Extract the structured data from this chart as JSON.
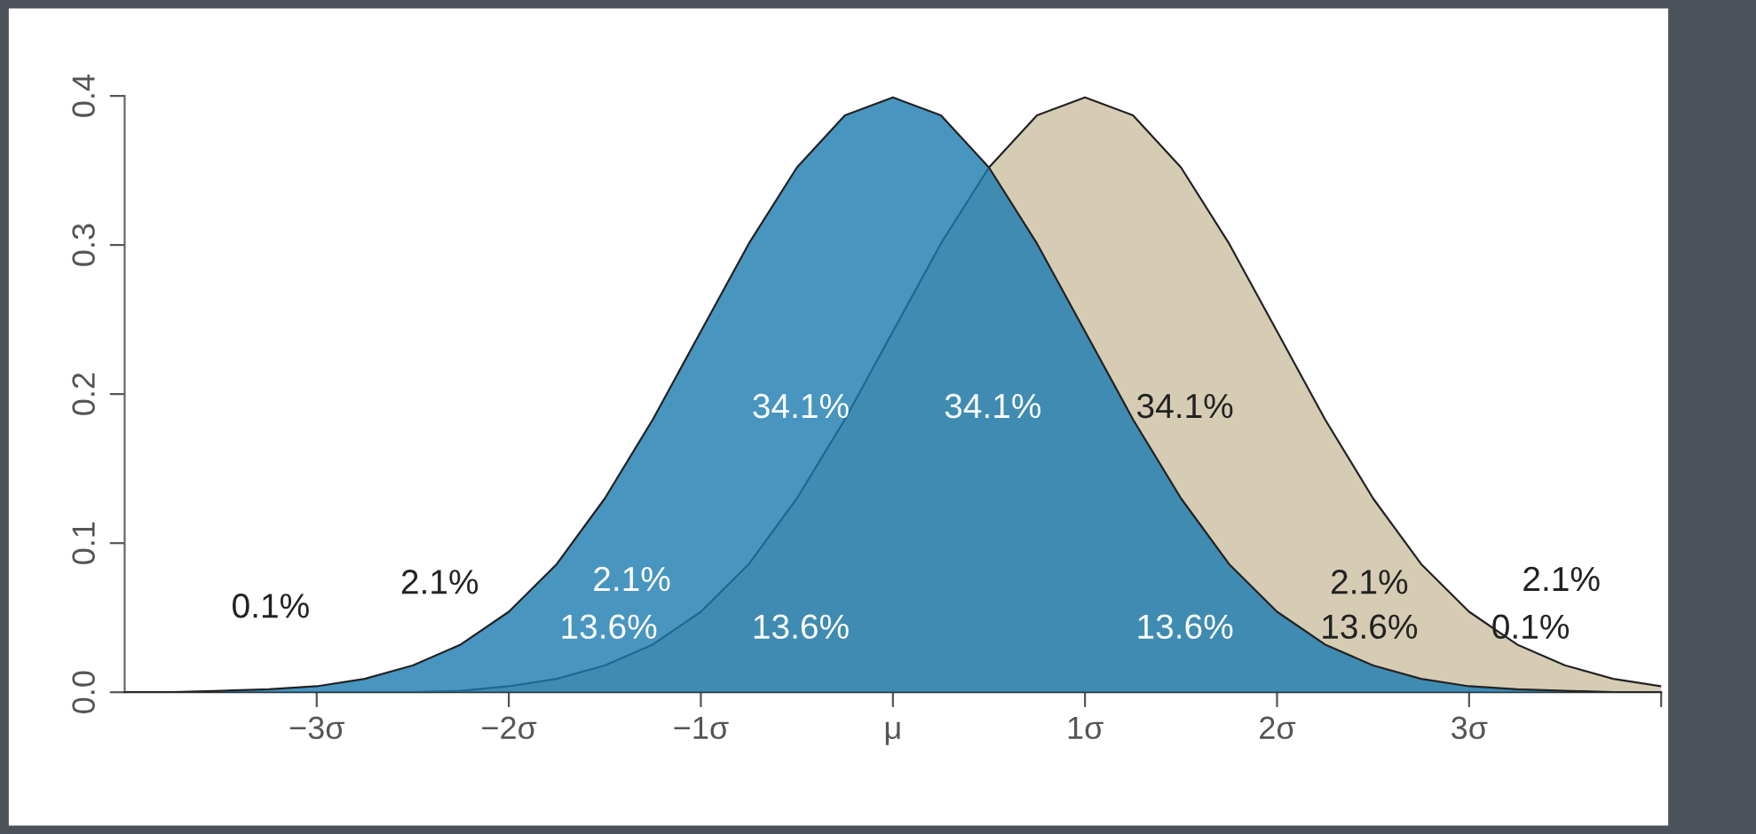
{
  "chart_data": {
    "type": "area",
    "series": [
      {
        "color": "#1a7ab0",
        "x": [
          -4,
          -3.75,
          -3.5,
          -3.25,
          -3,
          -2.75,
          -2.5,
          -2.25,
          -2,
          -1.75,
          -1.5,
          -1.25,
          -1,
          -0.75,
          -0.5,
          -0.25,
          0,
          0.25,
          0.5,
          0.75,
          1,
          1.25,
          1.5,
          1.75,
          2,
          2.25,
          2.5,
          2.75,
          3,
          3.25,
          3.5,
          3.75,
          4
        ],
        "values": [
          0.0,
          0.0,
          0.001,
          0.002,
          0.004,
          0.009,
          0.018,
          0.032,
          0.054,
          0.086,
          0.13,
          0.183,
          0.242,
          0.301,
          0.352,
          0.387,
          0.399,
          0.387,
          0.352,
          0.301,
          0.242,
          0.183,
          0.13,
          0.086,
          0.054,
          0.032,
          0.018,
          0.009,
          0.004,
          0.002,
          0.001,
          0.0,
          0.0
        ]
      },
      {
        "color": "#d6ccb4",
        "x": [
          -3,
          -2.75,
          -2.5,
          -2.25,
          -2,
          -1.75,
          -1.5,
          -1.25,
          -1,
          -0.75,
          -0.5,
          -0.25,
          0,
          0.25,
          0.5,
          0.75,
          1,
          1.25,
          1.5,
          1.75,
          2,
          2.25,
          2.5,
          2.75,
          3,
          3.25,
          3.5,
          3.75,
          4
        ],
        "values": [
          0.0,
          0.0,
          0.0,
          0.001,
          0.004,
          0.009,
          0.018,
          0.032,
          0.054,
          0.086,
          0.13,
          0.183,
          0.242,
          0.301,
          0.352,
          0.387,
          0.399,
          0.387,
          0.352,
          0.301,
          0.242,
          0.183,
          0.13,
          0.086,
          0.054,
          0.032,
          0.018,
          0.009,
          0.004
        ]
      }
    ],
    "xlim": [
      -4,
      4
    ],
    "xticks": [
      {
        "value": -3,
        "label": "−3σ"
      },
      {
        "value": -2,
        "label": "−2σ"
      },
      {
        "value": -1,
        "label": "−1σ"
      },
      {
        "value": 0,
        "label": "μ"
      },
      {
        "value": 1,
        "label": "1σ"
      },
      {
        "value": 2,
        "label": "2σ"
      },
      {
        "value": 3,
        "label": "3σ"
      },
      {
        "value": 4,
        "label": null
      }
    ],
    "ylim": [
      0,
      0.4
    ],
    "yticks": [
      {
        "value": 0,
        "label": "0.0"
      },
      0.1,
      0.2,
      0.3,
      0.4
    ],
    "grid": false,
    "annotations": [
      "0.1%",
      "2.1%",
      "2.1%",
      "13.6%",
      "13.6%",
      "34.1%",
      "34.1%",
      "34.1%",
      "13.6%",
      "13.6%",
      "2.1%",
      "0.1%",
      "2.1%"
    ]
  }
}
